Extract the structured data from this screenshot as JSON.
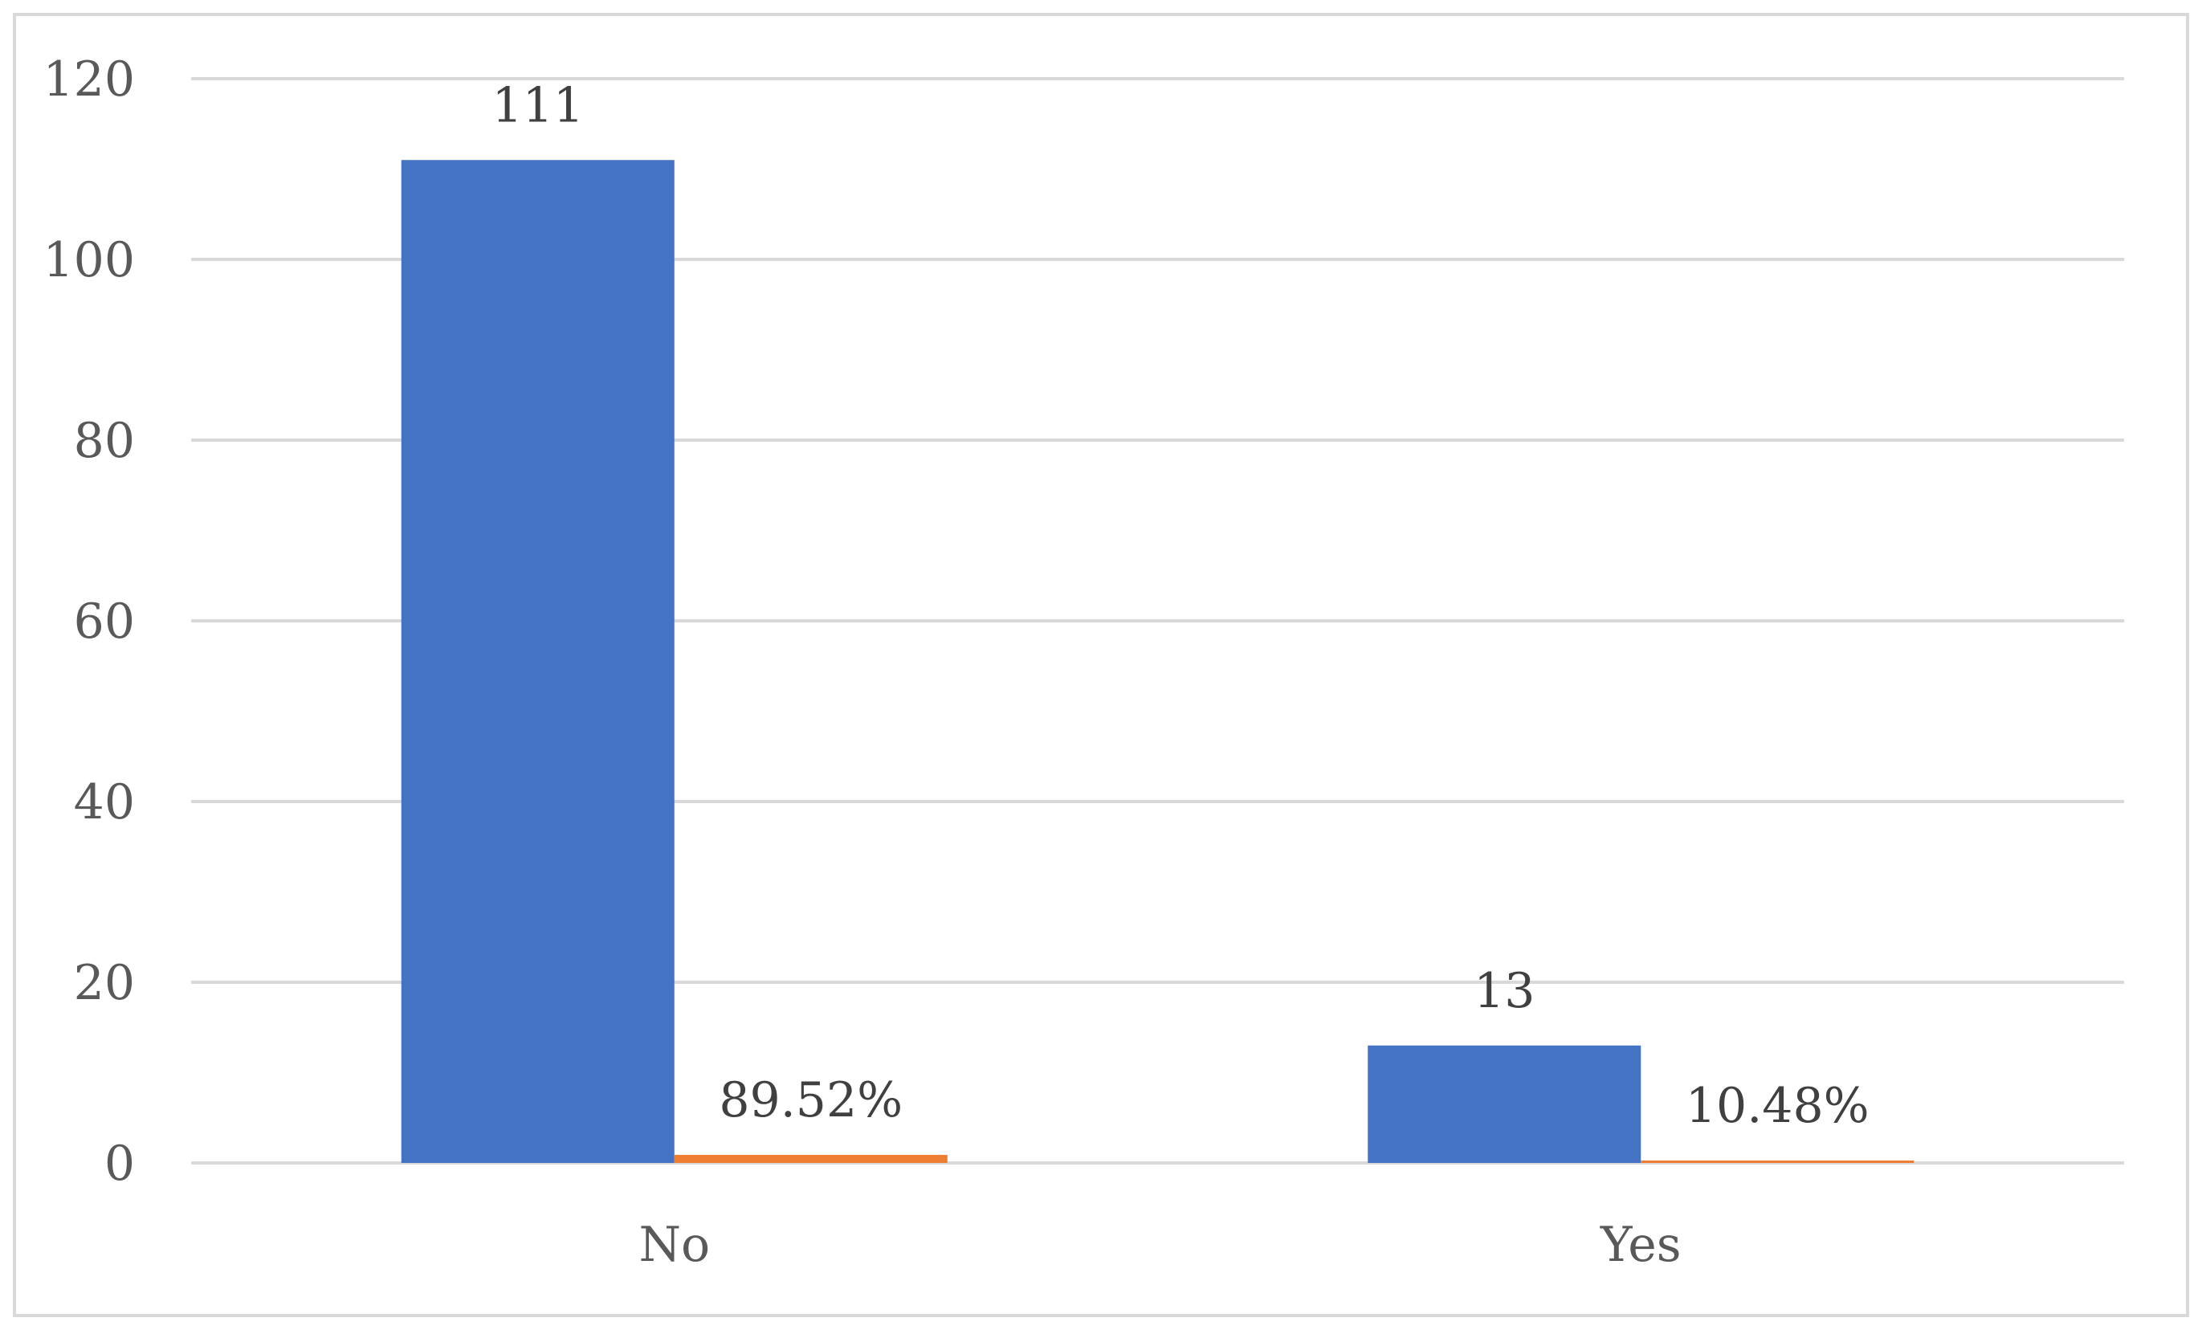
{
  "chart_data": {
    "type": "bar",
    "categories": [
      "No",
      "Yes"
    ],
    "series": [
      {
        "values": [
          111,
          13
        ],
        "labels": [
          "111",
          "13"
        ],
        "color": "#4472c4"
      },
      {
        "values": [
          0.8952,
          0.1048
        ],
        "labels": [
          "89.52%",
          "10.48%"
        ],
        "color": "#ed7d31"
      }
    ],
    "title": "",
    "xlabel": "",
    "ylabel": "",
    "ylim": [
      0,
      120
    ],
    "yticks": [
      "0",
      "20",
      "40",
      "60",
      "80",
      "100",
      "120"
    ],
    "grid": true,
    "legend": "none",
    "gridline_color": "#d9d9d9",
    "tick_label_color": "#595959",
    "data_label_color": "#404040"
  }
}
